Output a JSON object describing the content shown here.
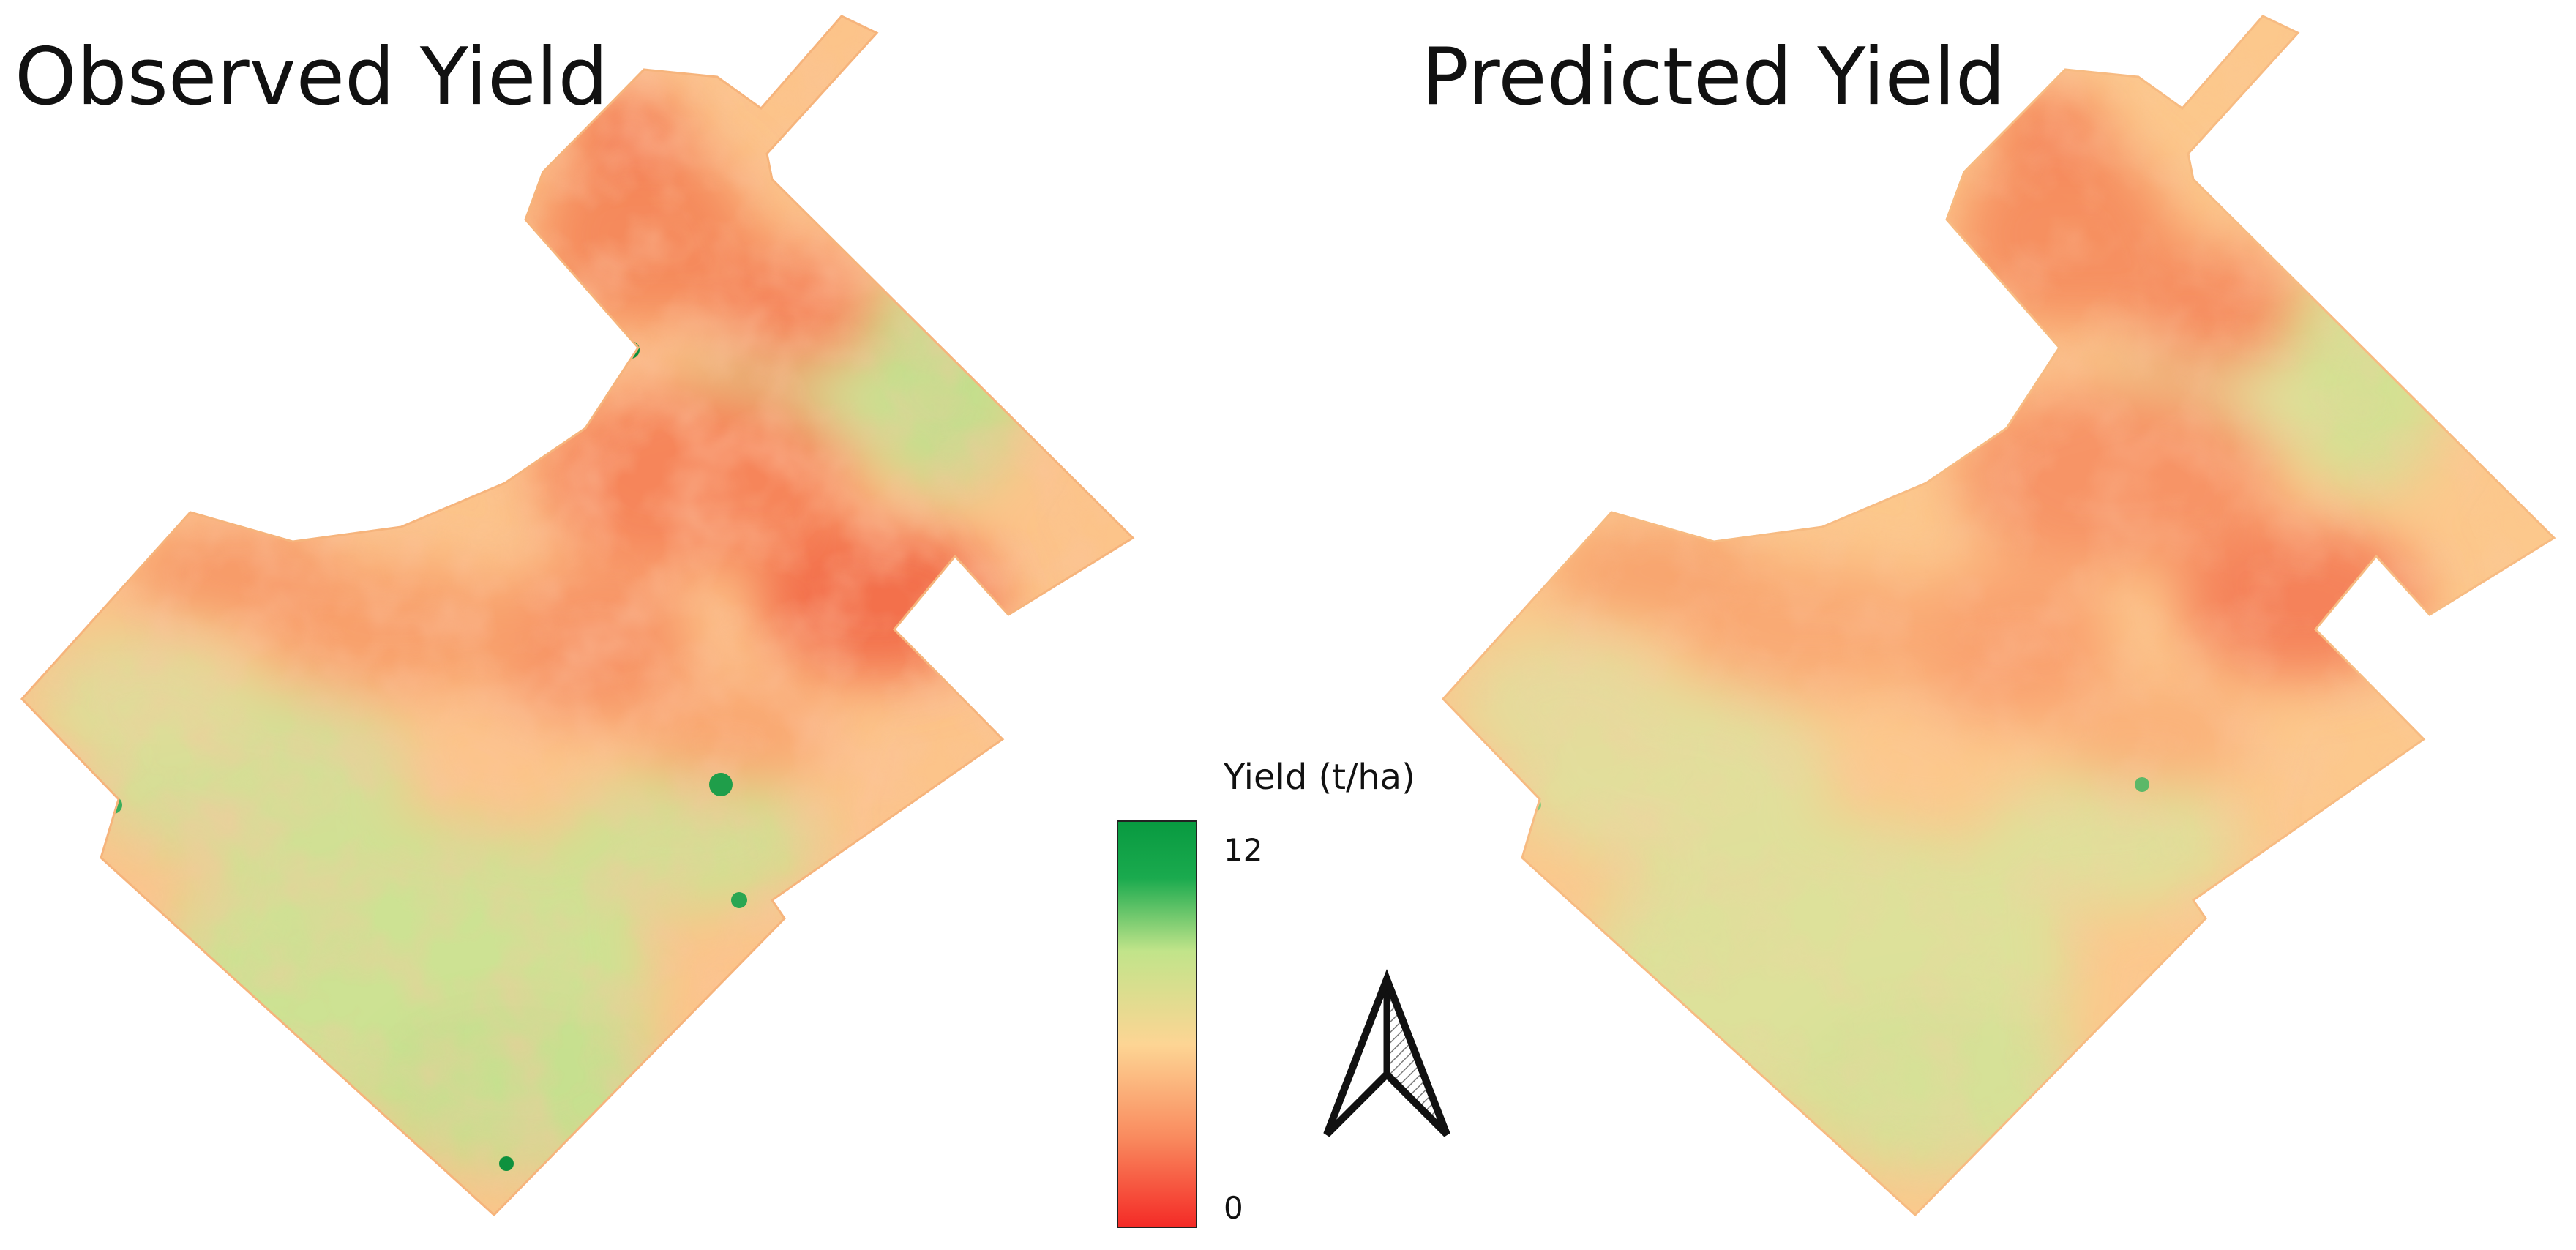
{
  "maps": [
    {
      "title": "Observed Yield",
      "variant": "observed"
    },
    {
      "title": "Predicted Yield",
      "variant": "predicted"
    }
  ],
  "legend": {
    "title": "Yield (t/ha)",
    "max_label": "12",
    "min_label": "0",
    "min_value": 0,
    "max_value": 12,
    "colors": {
      "low": "#f42a26",
      "low_mid": "#f98a5e",
      "mid": "#fdd594",
      "high_mid": "#c1e48a",
      "high": "#089a40"
    }
  },
  "north_arrow": {
    "icon": "north-arrow-icon"
  }
}
